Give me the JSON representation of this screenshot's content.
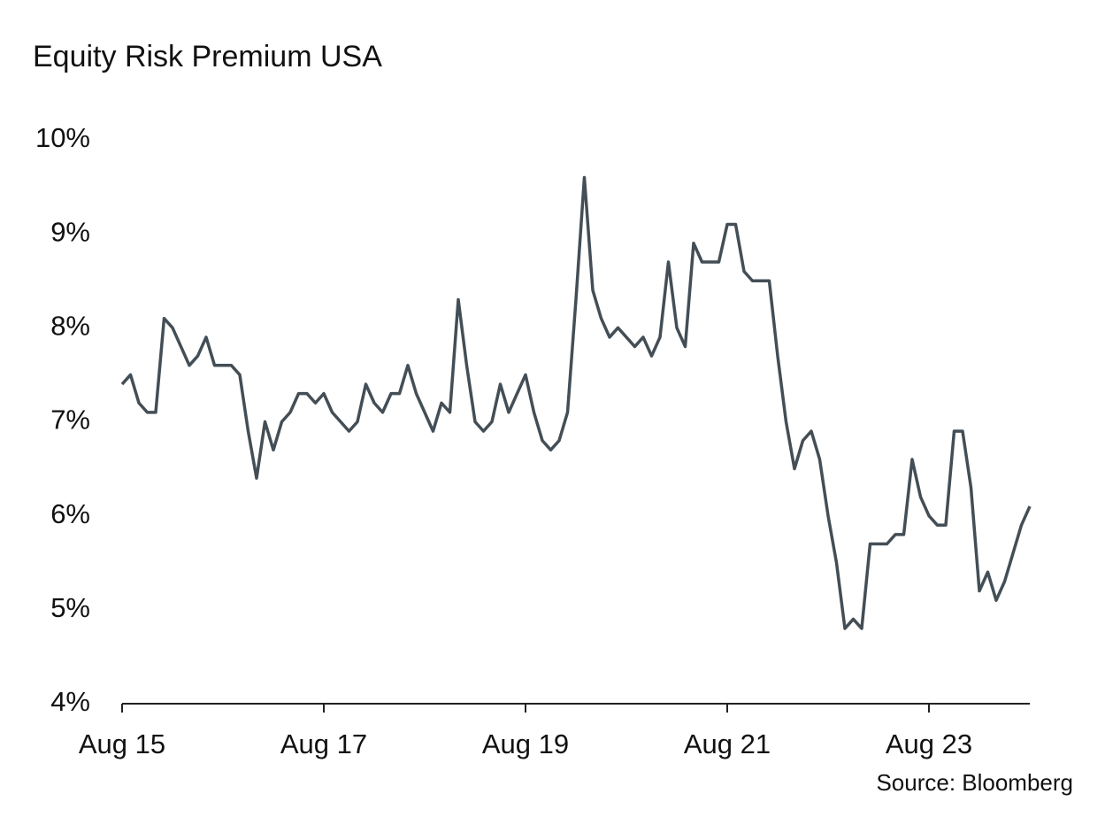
{
  "chart_data": {
    "type": "line",
    "title": "Equity Risk Premium USA",
    "source": "Source: Bloomberg",
    "x": [
      "2015-08",
      "2015-09",
      "2015-10",
      "2015-11",
      "2015-12",
      "2016-01",
      "2016-02",
      "2016-03",
      "2016-04",
      "2016-05",
      "2016-06",
      "2016-07",
      "2016-08",
      "2016-09",
      "2016-10",
      "2016-11",
      "2016-12",
      "2017-01",
      "2017-02",
      "2017-03",
      "2017-04",
      "2017-05",
      "2017-06",
      "2017-07",
      "2017-08",
      "2017-09",
      "2017-10",
      "2017-11",
      "2017-12",
      "2018-01",
      "2018-02",
      "2018-03",
      "2018-04",
      "2018-05",
      "2018-06",
      "2018-07",
      "2018-08",
      "2018-09",
      "2018-10",
      "2018-11",
      "2018-12",
      "2019-01",
      "2019-02",
      "2019-03",
      "2019-04",
      "2019-05",
      "2019-06",
      "2019-07",
      "2019-08",
      "2019-09",
      "2019-10",
      "2019-11",
      "2019-12",
      "2020-01",
      "2020-02",
      "2020-03",
      "2020-04",
      "2020-05",
      "2020-06",
      "2020-07",
      "2020-08",
      "2020-09",
      "2020-10",
      "2020-11",
      "2020-12",
      "2021-01",
      "2021-02",
      "2021-03",
      "2021-04",
      "2021-05",
      "2021-06",
      "2021-07",
      "2021-08",
      "2021-09",
      "2021-10",
      "2021-11",
      "2021-12",
      "2022-01",
      "2022-02",
      "2022-03",
      "2022-04",
      "2022-05",
      "2022-06",
      "2022-07",
      "2022-08",
      "2022-09",
      "2022-10",
      "2022-11",
      "2022-12",
      "2023-01",
      "2023-02",
      "2023-03",
      "2023-04",
      "2023-05",
      "2023-06",
      "2023-07",
      "2023-08",
      "2023-09",
      "2023-10",
      "2023-11",
      "2023-12",
      "2024-01",
      "2024-02",
      "2024-03",
      "2024-04",
      "2024-05",
      "2024-06",
      "2024-07",
      "2024-08"
    ],
    "series": [
      {
        "color": "#434e56",
        "values": [
          7.4,
          7.5,
          7.2,
          7.1,
          7.1,
          8.1,
          8.0,
          7.8,
          7.6,
          7.7,
          7.9,
          7.6,
          7.6,
          7.6,
          7.5,
          6.9,
          6.4,
          7.0,
          6.7,
          7.0,
          7.1,
          7.3,
          7.3,
          7.2,
          7.3,
          7.1,
          7.0,
          6.9,
          7.0,
          7.4,
          7.2,
          7.1,
          7.3,
          7.3,
          7.6,
          7.3,
          7.1,
          6.9,
          7.2,
          7.1,
          8.3,
          7.6,
          7.0,
          6.9,
          7.0,
          7.4,
          7.1,
          7.3,
          7.5,
          7.1,
          6.8,
          6.7,
          6.8,
          7.1,
          8.3,
          9.6,
          8.4,
          8.1,
          7.9,
          8.0,
          7.9,
          7.8,
          7.9,
          7.7,
          7.9,
          8.7,
          8.0,
          7.8,
          8.9,
          8.7,
          8.7,
          8.7,
          9.1,
          9.1,
          8.6,
          8.5,
          8.5,
          8.5,
          7.7,
          7.0,
          6.5,
          6.8,
          6.9,
          6.6,
          6.0,
          5.5,
          4.8,
          4.9,
          4.8,
          5.7,
          5.7,
          5.7,
          5.8,
          5.8,
          6.6,
          6.2,
          6.0,
          5.9,
          5.9,
          6.9,
          6.9,
          6.3,
          5.2,
          5.4,
          5.1,
          5.3,
          5.6,
          5.9,
          6.1
        ]
      }
    ],
    "xlim": [
      "2015-08",
      "2024-08"
    ],
    "xticks": [
      {
        "value": "2015-08",
        "label": "Aug 15"
      },
      {
        "value": "2017-08",
        "label": "Aug 17"
      },
      {
        "value": "2019-08",
        "label": "Aug 19"
      },
      {
        "value": "2021-08",
        "label": "Aug 21"
      },
      {
        "value": "2023-08",
        "label": "Aug 23"
      }
    ],
    "ylim": [
      4,
      10
    ],
    "yticks": [
      {
        "value": 4,
        "label": "4%"
      },
      {
        "value": 5,
        "label": "5%"
      },
      {
        "value": 6,
        "label": "6%"
      },
      {
        "value": 7,
        "label": "7%"
      },
      {
        "value": 8,
        "label": "8%"
      },
      {
        "value": 9,
        "label": "9%"
      },
      {
        "value": 10,
        "label": "10%"
      }
    ],
    "grid": false
  }
}
